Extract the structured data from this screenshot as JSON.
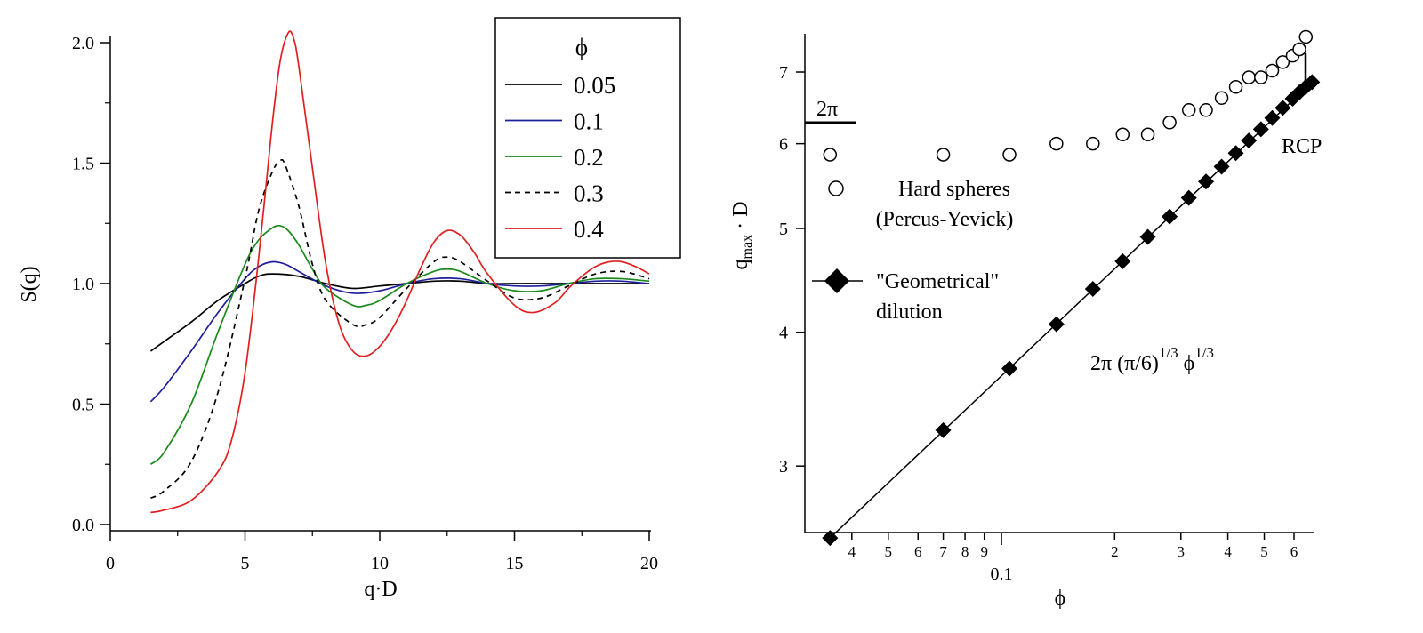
{
  "chart_data": [
    {
      "type": "line",
      "xlabel": "q·D",
      "ylabel": "S(q)",
      "xlim": [
        0,
        20
      ],
      "ylim": [
        0,
        2.0
      ],
      "x_ticks": [
        "0",
        "5",
        "10",
        "15",
        "20"
      ],
      "y_ticks": [
        "0.0",
        "0.5",
        "1.0",
        "1.5",
        "2.0"
      ],
      "legend": {
        "title": "ϕ",
        "placement": "top-right"
      },
      "series": [
        {
          "name": "0.05",
          "color": "#000000",
          "dash": "solid",
          "x": [
            1.5,
            2.0,
            3.0,
            4.0,
            5.0,
            5.5,
            6.0,
            7.0,
            8.0,
            9.0,
            10.0,
            11.0,
            12.0,
            13.0,
            14.0,
            15.0,
            16.0,
            17.0,
            18.0,
            19.0,
            20.0
          ],
          "y": [
            0.72,
            0.76,
            0.84,
            0.93,
            1.0,
            1.03,
            1.04,
            1.03,
            1.0,
            0.98,
            0.99,
            1.0,
            1.01,
            1.01,
            1.0,
            1.0,
            1.0,
            1.0,
            1.0,
            1.0,
            1.0
          ]
        },
        {
          "name": "0.1",
          "color": "#1f1f9e",
          "dash": "solid",
          "x": [
            1.5,
            2.0,
            3.0,
            4.0,
            5.0,
            5.5,
            6.0,
            6.5,
            7.0,
            8.0,
            9.0,
            10.0,
            11.0,
            12.0,
            13.0,
            14.0,
            15.0,
            16.0,
            17.0,
            18.0,
            19.0,
            20.0
          ],
          "y": [
            0.51,
            0.57,
            0.72,
            0.88,
            1.02,
            1.07,
            1.09,
            1.08,
            1.05,
            0.99,
            0.96,
            0.97,
            1.0,
            1.02,
            1.02,
            1.0,
            0.99,
            0.99,
            1.0,
            1.01,
            1.01,
            1.0
          ]
        },
        {
          "name": "0.2",
          "color": "#1a8a1a",
          "dash": "solid",
          "x": [
            1.5,
            2.0,
            3.0,
            4.0,
            5.0,
            5.5,
            6.0,
            6.3,
            6.6,
            7.0,
            7.5,
            8.0,
            9.0,
            9.5,
            10.0,
            11.0,
            12.0,
            12.5,
            13.0,
            14.0,
            15.0,
            16.0,
            17.0,
            18.0,
            19.0,
            20.0
          ],
          "y": [
            0.25,
            0.3,
            0.5,
            0.8,
            1.08,
            1.18,
            1.23,
            1.24,
            1.22,
            1.16,
            1.06,
            0.98,
            0.91,
            0.91,
            0.93,
            1.0,
            1.05,
            1.06,
            1.05,
            1.0,
            0.97,
            0.97,
            1.0,
            1.02,
            1.02,
            1.01
          ]
        },
        {
          "name": "0.3",
          "color": "#000000",
          "dash": "dashed",
          "x": [
            1.5,
            2.0,
            3.0,
            4.0,
            5.0,
            5.5,
            6.0,
            6.3,
            6.5,
            7.0,
            7.5,
            8.0,
            9.0,
            9.5,
            10.0,
            11.0,
            12.0,
            12.5,
            13.0,
            14.0,
            15.0,
            16.0,
            17.0,
            18.0,
            19.0,
            20.0
          ],
          "y": [
            0.11,
            0.14,
            0.26,
            0.55,
            1.02,
            1.3,
            1.46,
            1.51,
            1.49,
            1.32,
            1.08,
            0.93,
            0.83,
            0.83,
            0.86,
            0.98,
            1.09,
            1.11,
            1.09,
            1.01,
            0.94,
            0.94,
            0.99,
            1.04,
            1.05,
            1.02
          ]
        },
        {
          "name": "0.4",
          "color": "#e02020",
          "dash": "solid",
          "x": [
            1.5,
            2.0,
            3.0,
            4.0,
            4.5,
            5.0,
            5.5,
            6.0,
            6.3,
            6.6,
            6.8,
            7.0,
            7.5,
            8.0,
            8.5,
            9.0,
            9.5,
            10.0,
            10.5,
            11.0,
            11.5,
            12.0,
            12.5,
            13.0,
            13.5,
            14.0,
            15.0,
            15.7,
            16.5,
            17.0,
            17.5,
            18.0,
            18.5,
            19.0,
            19.5,
            20.0
          ],
          "y": [
            0.05,
            0.06,
            0.1,
            0.22,
            0.35,
            0.63,
            1.1,
            1.65,
            1.92,
            2.04,
            2.02,
            1.9,
            1.48,
            1.08,
            0.83,
            0.72,
            0.7,
            0.74,
            0.82,
            0.93,
            1.06,
            1.17,
            1.22,
            1.2,
            1.13,
            1.04,
            0.91,
            0.88,
            0.92,
            0.98,
            1.03,
            1.07,
            1.09,
            1.09,
            1.07,
            1.04
          ]
        }
      ]
    },
    {
      "type": "scatter",
      "xlabel": "ϕ",
      "ylabel_main": "q",
      "ylabel_sub": "max",
      "ylabel_rest": " · D",
      "x_scale": "log",
      "y_scale": "log",
      "xlim": [
        0.03,
        0.68
      ],
      "ylim": [
        2.6,
        7.6
      ],
      "x_ticks": [
        {
          "v": 0.04,
          "label": "4"
        },
        {
          "v": 0.05,
          "label": "5"
        },
        {
          "v": 0.06,
          "label": "6"
        },
        {
          "v": 0.07,
          "label": "7"
        },
        {
          "v": 0.08,
          "label": "8"
        },
        {
          "v": 0.09,
          "label": "9"
        },
        {
          "v": 0.1,
          "label": "0.1"
        },
        {
          "v": 0.2,
          "label": "2"
        },
        {
          "v": 0.3,
          "label": "3"
        },
        {
          "v": 0.4,
          "label": "4"
        },
        {
          "v": 0.5,
          "label": "5"
        },
        {
          "v": 0.6,
          "label": "6"
        }
      ],
      "y_ticks": [
        {
          "v": 3,
          "label": "3"
        },
        {
          "v": 4,
          "label": "4"
        },
        {
          "v": 5,
          "label": "5"
        },
        {
          "v": 6,
          "label": "6"
        },
        {
          "v": 7,
          "label": "7"
        }
      ],
      "series": [
        {
          "name": "Hard spheres (Percus-Yevick)",
          "marker": "open-circle",
          "x": [
            0.035,
            0.07,
            0.105,
            0.14,
            0.175,
            0.21,
            0.245,
            0.28,
            0.315,
            0.35,
            0.385,
            0.42,
            0.455,
            0.49,
            0.525,
            0.56,
            0.595,
            0.62,
            0.645
          ],
          "y": [
            5.86,
            5.86,
            5.86,
            6.0,
            6.0,
            6.12,
            6.12,
            6.28,
            6.45,
            6.45,
            6.62,
            6.78,
            6.92,
            6.92,
            7.02,
            7.15,
            7.25,
            7.35,
            7.55
          ]
        },
        {
          "name": "\"Geometrical\" dilution",
          "marker": "filled-diamond",
          "fit_label": "2π (π/6)^1/3 ϕ^1/3",
          "x": [
            0.035,
            0.07,
            0.105,
            0.14,
            0.175,
            0.21,
            0.245,
            0.28,
            0.315,
            0.35,
            0.385,
            0.42,
            0.455,
            0.49,
            0.525,
            0.56,
            0.595,
            0.62,
            0.645,
            0.67
          ],
          "y": [
            2.57,
            3.24,
            3.7,
            4.07,
            4.39,
            4.66,
            4.91,
            5.13,
            5.34,
            5.53,
            5.71,
            5.88,
            6.04,
            6.19,
            6.34,
            6.48,
            6.61,
            6.7,
            6.78,
            6.85
          ]
        }
      ],
      "annotations": {
        "two_pi": "2π",
        "rcp": "RCP",
        "hs_line1": "Hard spheres",
        "hs_line2": "(Percus-Yevick)",
        "geo_line1": "\"Geometrical\"",
        "geo_line2": "dilution",
        "fit_main": "2π (π/6)",
        "fit_exp1": "1/3",
        "fit_mid": " ϕ",
        "fit_exp2": "1/3"
      }
    }
  ]
}
